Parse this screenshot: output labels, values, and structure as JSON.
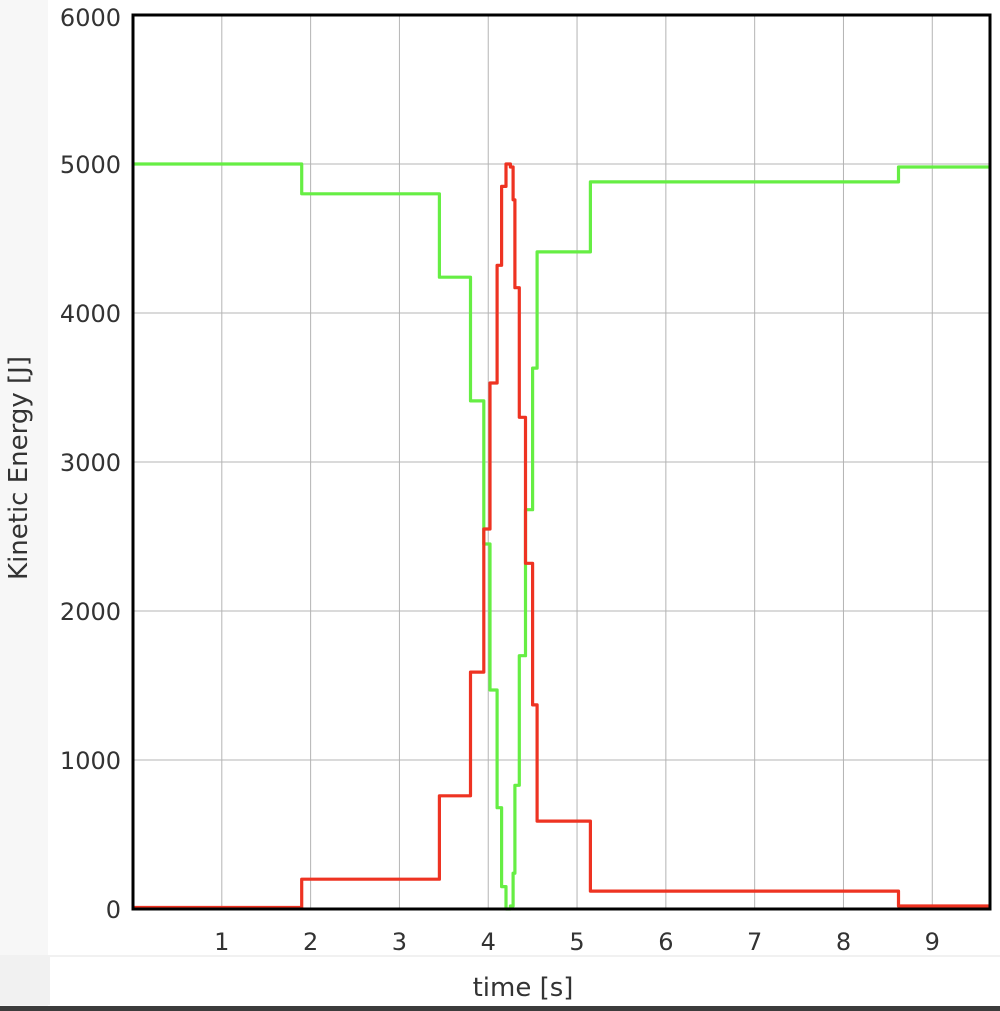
{
  "chart_data": {
    "type": "line",
    "title": "",
    "xlabel": "time [s]",
    "ylabel": "Kinetic Energy [J]",
    "xlim": [
      0,
      9.65
    ],
    "ylim": [
      0,
      6000
    ],
    "x_ticks": [
      "1",
      "2",
      "3",
      "4",
      "5",
      "6",
      "7",
      "8",
      "9"
    ],
    "y_ticks": [
      "0",
      "1000",
      "2000",
      "3000",
      "4000",
      "5000",
      "6000"
    ],
    "grid": true,
    "legend": "none",
    "step": true,
    "series": [
      {
        "color": "#66ee44",
        "x": [
          0,
          1.9,
          3.45,
          3.8,
          3.95,
          4.02,
          4.1,
          4.15,
          4.2,
          4.25,
          4.28,
          4.3,
          4.35,
          4.42,
          4.5,
          4.55,
          4.72,
          5.15,
          8.62,
          9.65
        ],
        "y": [
          5000,
          4800,
          4240,
          3410,
          2450,
          1470,
          680,
          150,
          0,
          20,
          240,
          830,
          1700,
          2680,
          3630,
          4410,
          4410,
          4880,
          4980,
          4980
        ]
      },
      {
        "color": "#ee3322",
        "x": [
          0,
          1.9,
          3.45,
          3.8,
          3.95,
          4.02,
          4.1,
          4.15,
          4.2,
          4.25,
          4.28,
          4.3,
          4.35,
          4.42,
          4.5,
          4.55,
          4.72,
          5.15,
          8.62,
          9.65
        ],
        "y": [
          10,
          200,
          760,
          1590,
          2550,
          3530,
          4320,
          4850,
          5000,
          4980,
          4760,
          4170,
          3300,
          2320,
          1370,
          590,
          590,
          120,
          20,
          20
        ]
      }
    ]
  }
}
